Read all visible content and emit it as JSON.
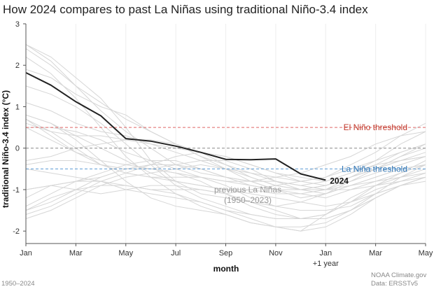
{
  "title": "How 2024 compares to past La Niñas using traditional Niño-3.4 index",
  "footer": {
    "left": "1950–2024",
    "credit_line1": "NOAA Climate.gov",
    "credit_line2": "Data: ERSSTv5"
  },
  "chart_data": {
    "type": "line",
    "title": "How 2024 compares to past La Niñas using traditional Niño-3.4 index",
    "xlabel": "month",
    "ylabel": "traditional Niño-3.4 index (°C)",
    "ylim": [
      -2.3,
      3
    ],
    "yticks": [
      -2,
      -1,
      0,
      1,
      2,
      3
    ],
    "x_months_range": [
      0,
      16
    ],
    "xticks": [
      {
        "m": 0,
        "label": "Jan"
      },
      {
        "m": 2,
        "label": "Mar"
      },
      {
        "m": 4,
        "label": "May"
      },
      {
        "m": 6,
        "label": "Jul"
      },
      {
        "m": 8,
        "label": "Sep"
      },
      {
        "m": 10,
        "label": "Nov"
      },
      {
        "m": 12,
        "label": "Jan",
        "sublabel": "+1 year"
      },
      {
        "m": 14,
        "label": "Mar"
      },
      {
        "m": 16,
        "label": "May"
      }
    ],
    "reference_lines": [
      {
        "name": "El Niño threshold",
        "label": "El Niño threshold",
        "y": 0.5,
        "color": "#e06666",
        "dash": true
      },
      {
        "name": "zero",
        "label": "",
        "y": 0,
        "color": "#888888",
        "dash": true
      },
      {
        "name": "La Niña threshold",
        "label": "La Niña threshold",
        "y": -0.5,
        "color": "#5b9bd5",
        "dash": true
      }
    ],
    "highlight_series": {
      "name": "2024",
      "label": "2024",
      "color": "#222222",
      "x": [
        0,
        1,
        2,
        3,
        4,
        5,
        6,
        7,
        8,
        9,
        10,
        11,
        12
      ],
      "values": [
        1.82,
        1.52,
        1.12,
        0.78,
        0.23,
        0.17,
        0.05,
        -0.1,
        -0.27,
        -0.28,
        -0.26,
        -0.62,
        -0.77
      ]
    },
    "background_series_label": "previous La Niñas (1950–2023)",
    "background_series_color": "#d6d6d6",
    "background_series": [
      {
        "name": "1950",
        "values": [
          -1.5,
          -1.3,
          -1.0,
          -0.7,
          -0.5,
          -0.5,
          -0.6,
          -0.7,
          -0.8,
          -0.8,
          -0.8,
          -0.9,
          -1.0,
          -1.0,
          -0.9,
          -0.8,
          -0.7
        ]
      },
      {
        "name": "1954",
        "values": [
          0.5,
          0.2,
          -0.1,
          -0.4,
          -0.6,
          -0.7,
          -0.7,
          -0.7,
          -0.8,
          -0.9,
          -1.0,
          -1.1,
          -1.2,
          -1.0,
          -0.8,
          -0.6,
          -0.4
        ]
      },
      {
        "name": "1955",
        "values": [
          -1.2,
          -0.9,
          -0.8,
          -0.8,
          -0.9,
          -1.0,
          -1.1,
          -1.3,
          -1.5,
          -1.7,
          -1.9,
          -2.0,
          -1.6,
          -1.2,
          -0.9,
          -0.7,
          -0.5
        ]
      },
      {
        "name": "1964",
        "values": [
          0.7,
          0.4,
          0.0,
          -0.4,
          -0.6,
          -0.7,
          -0.8,
          -0.9,
          -1.0,
          -1.0,
          -1.1,
          -1.1,
          -1.0,
          -0.7,
          -0.4,
          -0.1,
          0.1
        ]
      },
      {
        "name": "1970",
        "values": [
          0.8,
          0.6,
          0.3,
          0.0,
          -0.3,
          -0.6,
          -0.8,
          -0.9,
          -1.0,
          -1.1,
          -1.2,
          -1.3,
          -1.4,
          -1.3,
          -1.1,
          -0.9,
          -0.7
        ]
      },
      {
        "name": "1973",
        "values": [
          2.2,
          1.8,
          1.2,
          0.5,
          -0.2,
          -0.7,
          -1.1,
          -1.4,
          -1.6,
          -1.8,
          -1.9,
          -2.0,
          -1.9,
          -1.6,
          -1.2,
          -0.9,
          -0.7
        ]
      },
      {
        "name": "1975",
        "values": [
          -0.5,
          -0.6,
          -0.7,
          -0.8,
          -1.0,
          -1.1,
          -1.2,
          -1.3,
          -1.5,
          -1.6,
          -1.7,
          -1.7,
          -1.6,
          -1.3,
          -0.9,
          -0.6,
          -0.3
        ]
      },
      {
        "name": "1983",
        "values": [
          2.4,
          2.0,
          1.5,
          1.1,
          0.7,
          0.4,
          0.1,
          -0.2,
          -0.4,
          -0.6,
          -0.8,
          -0.9,
          -0.8,
          -0.6,
          -0.4,
          -0.3,
          -0.2
        ]
      },
      {
        "name": "1984",
        "values": [
          -0.4,
          -0.3,
          -0.3,
          -0.4,
          -0.5,
          -0.5,
          -0.4,
          -0.3,
          -0.3,
          -0.5,
          -0.8,
          -1.0,
          -1.1,
          -0.9,
          -0.7,
          -0.5,
          -0.4
        ]
      },
      {
        "name": "1988",
        "values": [
          0.8,
          0.6,
          0.2,
          -0.3,
          -0.8,
          -1.2,
          -1.4,
          -1.5,
          -1.6,
          -1.8,
          -1.9,
          -1.9,
          -1.8,
          -1.5,
          -1.1,
          -0.7,
          -0.4
        ]
      },
      {
        "name": "1995",
        "values": [
          1.1,
          0.9,
          0.6,
          0.4,
          0.3,
          0.1,
          -0.1,
          -0.3,
          -0.5,
          -0.7,
          -0.9,
          -1.0,
          -0.9,
          -0.7,
          -0.5,
          -0.3,
          -0.2
        ]
      },
      {
        "name": "1998",
        "values": [
          2.5,
          2.2,
          1.7,
          1.2,
          0.5,
          -0.3,
          -0.8,
          -1.1,
          -1.2,
          -1.3,
          -1.4,
          -1.5,
          -1.5,
          -1.4,
          -1.1,
          -0.9,
          -0.8
        ]
      },
      {
        "name": "1999",
        "values": [
          -1.5,
          -1.2,
          -1.0,
          -0.9,
          -0.9,
          -1.0,
          -1.0,
          -1.0,
          -1.1,
          -1.3,
          -1.5,
          -1.7,
          -1.7,
          -1.5,
          -1.2,
          -0.9,
          -0.7
        ]
      },
      {
        "name": "2000",
        "values": [
          -1.7,
          -1.5,
          -1.2,
          -0.9,
          -0.7,
          -0.6,
          -0.5,
          -0.4,
          -0.5,
          -0.6,
          -0.7,
          -0.8,
          -0.7,
          -0.5,
          -0.3,
          -0.1,
          0.1
        ]
      },
      {
        "name": "2005",
        "values": [
          0.6,
          0.4,
          0.3,
          0.3,
          0.2,
          0.1,
          0.0,
          -0.1,
          -0.2,
          -0.4,
          -0.6,
          -0.8,
          -0.9,
          -0.7,
          -0.5,
          -0.3,
          -0.1
        ]
      },
      {
        "name": "2007",
        "values": [
          0.7,
          0.3,
          -0.1,
          -0.3,
          -0.4,
          -0.5,
          -0.6,
          -0.8,
          -1.1,
          -1.4,
          -1.6,
          -1.7,
          -1.7,
          -1.5,
          -1.2,
          -0.9,
          -0.7
        ]
      },
      {
        "name": "2008",
        "values": [
          -1.6,
          -1.4,
          -1.1,
          -0.8,
          -0.6,
          -0.4,
          -0.2,
          -0.1,
          -0.2,
          -0.4,
          -0.6,
          -0.7,
          -0.8,
          -0.6,
          -0.3,
          0.1,
          0.4
        ]
      },
      {
        "name": "2010",
        "values": [
          1.5,
          1.3,
          1.0,
          0.6,
          0.1,
          -0.4,
          -0.9,
          -1.2,
          -1.4,
          -1.6,
          -1.7,
          -1.7,
          -1.6,
          -1.3,
          -1.0,
          -0.8,
          -0.6
        ]
      },
      {
        "name": "2011",
        "values": [
          -1.4,
          -1.1,
          -0.8,
          -0.6,
          -0.4,
          -0.3,
          -0.3,
          -0.5,
          -0.7,
          -0.9,
          -1.0,
          -1.0,
          -0.9,
          -0.7,
          -0.5,
          -0.2,
          0.1
        ]
      },
      {
        "name": "2016",
        "values": [
          2.5,
          2.1,
          1.5,
          0.9,
          0.4,
          0.0,
          -0.4,
          -0.6,
          -0.7,
          -0.8,
          -0.7,
          -0.6,
          -0.4,
          -0.2,
          0.1,
          0.3,
          0.4
        ]
      },
      {
        "name": "2017",
        "values": [
          -0.3,
          -0.2,
          0.0,
          0.1,
          0.2,
          0.2,
          0.1,
          -0.1,
          -0.4,
          -0.7,
          -0.9,
          -1.0,
          -1.0,
          -0.8,
          -0.6,
          -0.4,
          -0.2
        ]
      },
      {
        "name": "2020",
        "values": [
          0.5,
          0.5,
          0.4,
          0.2,
          -0.1,
          -0.3,
          -0.5,
          -0.7,
          -0.9,
          -1.2,
          -1.4,
          -1.3,
          -1.1,
          -0.9,
          -0.7,
          -0.5,
          -0.4
        ]
      },
      {
        "name": "2021",
        "values": [
          -1.0,
          -0.9,
          -0.8,
          -0.7,
          -0.5,
          -0.4,
          -0.4,
          -0.5,
          -0.7,
          -0.8,
          -1.0,
          -1.0,
          -1.0,
          -0.9,
          -0.8,
          -0.7,
          -0.6
        ]
      },
      {
        "name": "2022",
        "values": [
          -1.0,
          -0.9,
          -1.0,
          -1.1,
          -1.0,
          -0.9,
          -0.9,
          -1.0,
          -1.1,
          -1.0,
          -0.9,
          -0.8,
          -0.7,
          -0.4,
          -0.1,
          0.3,
          0.6
        ]
      },
      {
        "name": "2023",
        "values": [
          1.9,
          1.7,
          1.3,
          1.0,
          0.8,
          0.4,
          0.1,
          -0.2,
          -0.5,
          -0.8,
          -1.0,
          -1.2,
          -1.1,
          -0.8,
          -0.5,
          -0.2,
          0.0
        ]
      }
    ]
  }
}
